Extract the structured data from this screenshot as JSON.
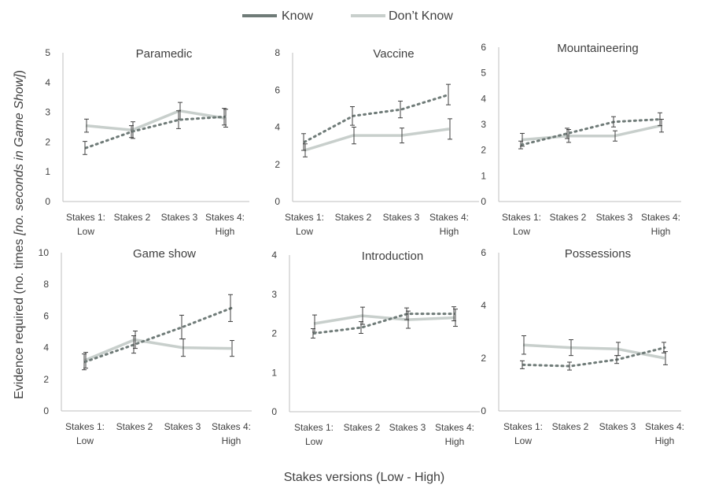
{
  "legend": {
    "entries": [
      {
        "label": "Know",
        "color": "#6f7b78",
        "style": "dotted"
      },
      {
        "label": "Don’t Know",
        "color": "#c8cfcc",
        "style": "solid"
      }
    ]
  },
  "xlabel": "Stakes versions (Low - High)",
  "ylabel_plain": "Evidence required (no. times ",
  "ylabel_italic": "[no. seconds in Game Show]",
  "ylabel_end": ")",
  "colors": {
    "know": "#6f7b78",
    "dont_know": "#c8cfcc",
    "axis": "#bfbfbf",
    "text": "#404040",
    "errorbar": "#404040"
  },
  "chart_data": [
    {
      "type": "line",
      "title": "Paramedic",
      "ylim": [
        0,
        5
      ],
      "yticks": [
        "0",
        "1",
        "2",
        "3",
        "4",
        "5"
      ],
      "categories": [
        [
          "Stakes 1:",
          "Low"
        ],
        [
          "Stakes 2"
        ],
        [
          "Stakes 3"
        ],
        [
          "Stakes 4:",
          "High"
        ]
      ],
      "series": [
        {
          "name": "Know",
          "values": [
            1.8,
            2.35,
            2.75,
            2.85
          ],
          "err": [
            0.22,
            0.2,
            0.3,
            0.28
          ]
        },
        {
          "name": "Don’t Know",
          "values": [
            2.55,
            2.4,
            3.05,
            2.8
          ],
          "err": [
            0.22,
            0.28,
            0.28,
            0.3
          ]
        }
      ]
    },
    {
      "type": "line",
      "title": "Vaccine",
      "ylim": [
        0,
        8
      ],
      "yticks": [
        "0",
        "2",
        "4",
        "6",
        "8"
      ],
      "categories": [
        [
          "Stakes 1:",
          "Low"
        ],
        [
          "Stakes 2"
        ],
        [
          "Stakes 3"
        ],
        [
          "Stakes 4:",
          "High"
        ]
      ],
      "series": [
        {
          "name": "Know",
          "values": [
            3.2,
            4.6,
            4.95,
            5.75
          ],
          "err": [
            0.45,
            0.5,
            0.45,
            0.55
          ]
        },
        {
          "name": "Don’t Know",
          "values": [
            2.75,
            3.55,
            3.55,
            3.9
          ],
          "err": [
            0.35,
            0.45,
            0.4,
            0.55
          ]
        }
      ]
    },
    {
      "type": "line",
      "title": "Mountaineering",
      "ylim": [
        0,
        6
      ],
      "yticks": [
        "0",
        "1",
        "2",
        "3",
        "4",
        "5",
        "6"
      ],
      "categories": [
        [
          "Stakes 1:",
          "Low"
        ],
        [
          "Stakes 2"
        ],
        [
          "Stakes 3"
        ],
        [
          "Stakes 4:",
          "High"
        ]
      ],
      "series": [
        {
          "name": "Know",
          "values": [
            2.2,
            2.65,
            3.1,
            3.2
          ],
          "err": [
            0.15,
            0.2,
            0.2,
            0.25
          ]
        },
        {
          "name": "Don’t Know",
          "values": [
            2.4,
            2.55,
            2.55,
            2.95
          ],
          "err": [
            0.25,
            0.25,
            0.2,
            0.25
          ]
        }
      ]
    },
    {
      "type": "line",
      "title": "Game show",
      "ylim": [
        0,
        10
      ],
      "yticks": [
        "0",
        "2",
        "4",
        "6",
        "8",
        "10"
      ],
      "categories": [
        [
          "Stakes 1:",
          "Low"
        ],
        [
          "Stakes 2"
        ],
        [
          "Stakes 3"
        ],
        [
          "Stakes 4:",
          "High"
        ]
      ],
      "series": [
        {
          "name": "Know",
          "values": [
            3.1,
            4.2,
            5.3,
            6.5
          ],
          "err": [
            0.5,
            0.55,
            0.75,
            0.85
          ]
        },
        {
          "name": "Don’t Know",
          "values": [
            3.2,
            4.5,
            4.0,
            3.95
          ],
          "err": [
            0.5,
            0.55,
            0.55,
            0.5
          ]
        }
      ]
    },
    {
      "type": "line",
      "title": "Introduction",
      "ylim": [
        0,
        4
      ],
      "yticks": [
        "0",
        "1",
        "2",
        "3",
        "4"
      ],
      "categories": [
        [
          "Stakes 1:",
          "Low"
        ],
        [
          "Stakes 2"
        ],
        [
          "Stakes 3"
        ],
        [
          "Stakes 4:",
          "High"
        ]
      ],
      "series": [
        {
          "name": "Know",
          "values": [
            2.0,
            2.15,
            2.5,
            2.5
          ],
          "err": [
            0.12,
            0.15,
            0.15,
            0.18
          ]
        },
        {
          "name": "Don’t Know",
          "values": [
            2.25,
            2.45,
            2.35,
            2.4
          ],
          "err": [
            0.22,
            0.22,
            0.22,
            0.22
          ]
        }
      ]
    },
    {
      "type": "line",
      "title": "Possessions",
      "ylim": [
        0,
        6
      ],
      "yticks": [
        "0",
        "2",
        "4",
        "6"
      ],
      "categories": [
        [
          "Stakes 1:",
          "Low"
        ],
        [
          "Stakes 2"
        ],
        [
          "Stakes 3"
        ],
        [
          "Stakes 4:",
          "High"
        ]
      ],
      "series": [
        {
          "name": "Know",
          "values": [
            1.75,
            1.7,
            1.95,
            2.4
          ],
          "err": [
            0.15,
            0.15,
            0.15,
            0.2
          ]
        },
        {
          "name": "Don’t Know",
          "values": [
            2.5,
            2.4,
            2.35,
            2.0
          ],
          "err": [
            0.35,
            0.3,
            0.25,
            0.25
          ]
        }
      ]
    }
  ]
}
